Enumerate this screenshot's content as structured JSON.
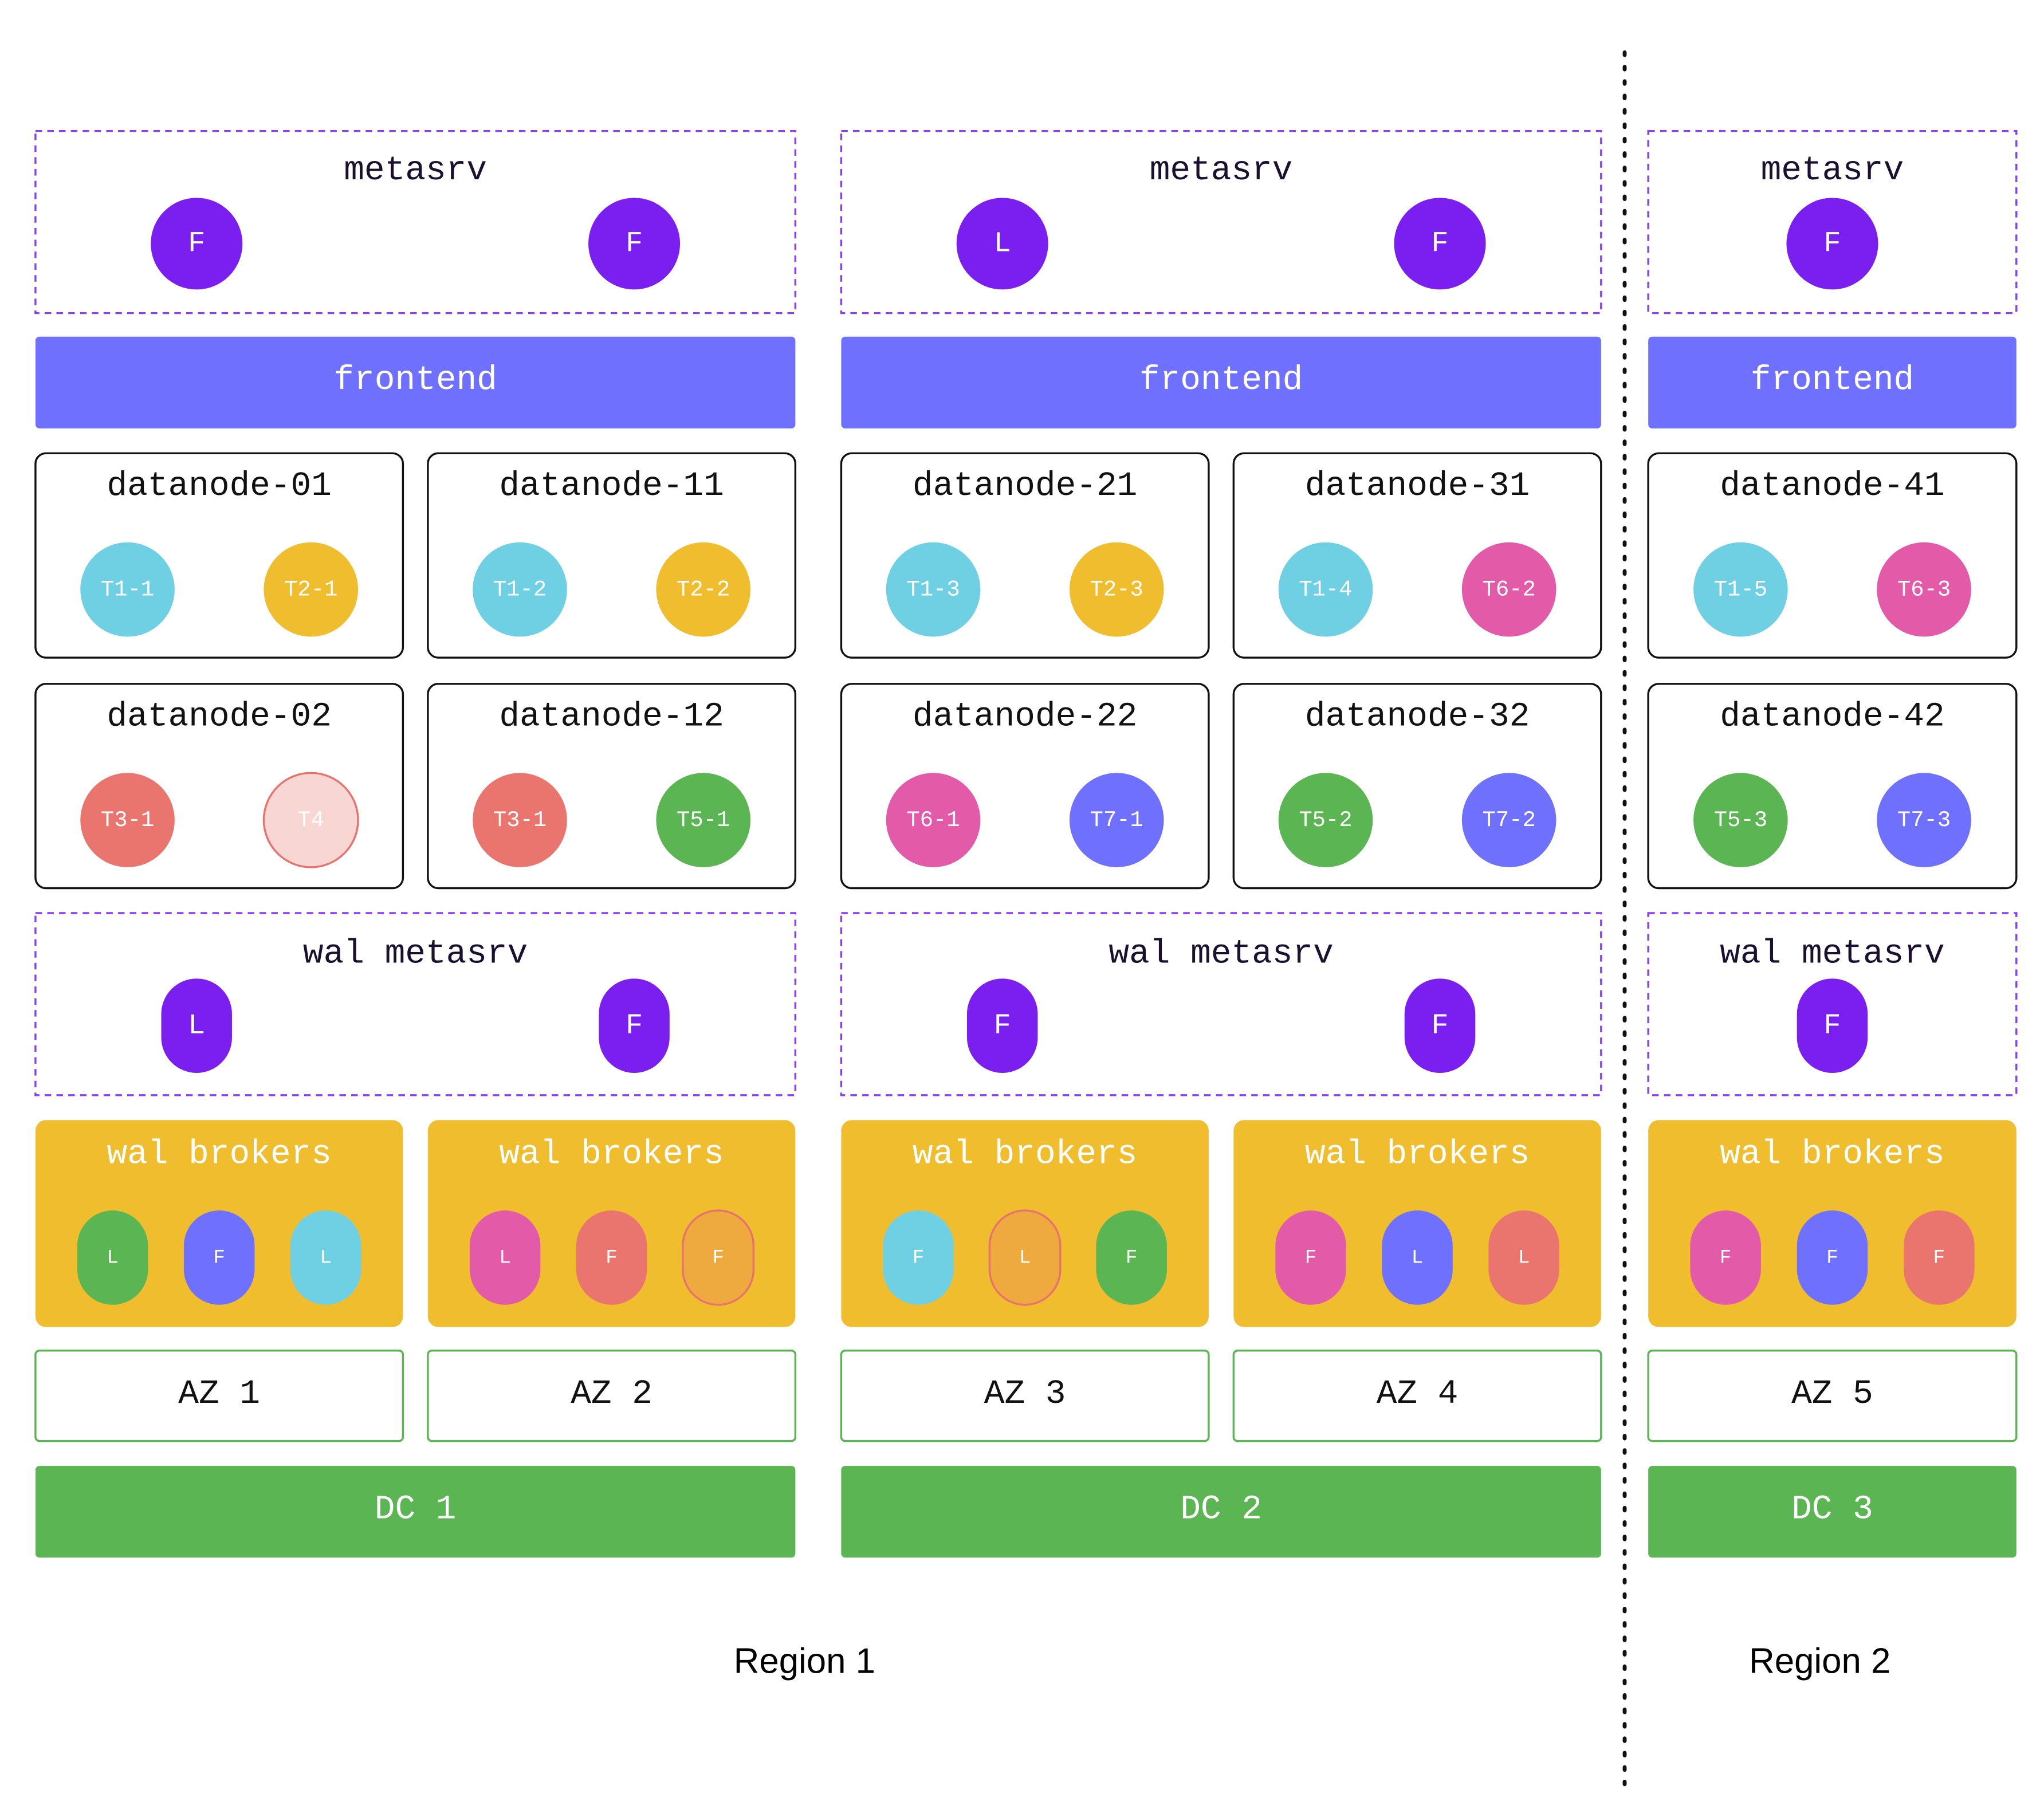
{
  "columns": [
    {
      "metasrv": {
        "title": "metasrv",
        "nodes": [
          "F",
          "F"
        ]
      },
      "frontend": "frontend",
      "datanodes": [
        {
          "name": "datanode-01",
          "regions": [
            {
              "label": "T1-1",
              "color": "#6fcfe3"
            },
            {
              "label": "T2-1",
              "color": "#f0bd2e"
            }
          ]
        },
        {
          "name": "datanode-11",
          "regions": [
            {
              "label": "T1-2",
              "color": "#6fcfe3"
            },
            {
              "label": "T2-2",
              "color": "#f0bd2e"
            }
          ]
        },
        {
          "name": "datanode-02",
          "regions": [
            {
              "label": "T3-1",
              "color": "#ea756e"
            },
            {
              "label": "T4",
              "color": "#f8d6d4",
              "outline": "#e8736c"
            }
          ]
        },
        {
          "name": "datanode-12",
          "regions": [
            {
              "label": "T3-1",
              "color": "#ea756e"
            },
            {
              "label": "T5-1",
              "color": "#5ab552"
            }
          ]
        }
      ],
      "wal_metasrv": {
        "title": "wal metasrv",
        "nodes": [
          "L",
          "F"
        ]
      },
      "wal_brokers": [
        {
          "title": "wal brokers",
          "nodes": [
            {
              "label": "L",
              "color": "#5ab552"
            },
            {
              "label": "F",
              "color": "#7070ff"
            },
            {
              "label": "L",
              "color": "#6fcfe3"
            }
          ]
        },
        {
          "title": "wal brokers",
          "nodes": [
            {
              "label": "L",
              "color": "#e35ba8"
            },
            {
              "label": "F",
              "color": "#ea756e"
            },
            {
              "label": "F",
              "color": "#eeaa3e",
              "outline": "#e8736c"
            }
          ]
        }
      ],
      "azs": [
        "AZ 1",
        "AZ 2"
      ],
      "dc": "DC 1"
    },
    {
      "metasrv": {
        "title": "metasrv",
        "nodes": [
          "L",
          "F"
        ]
      },
      "frontend": "frontend",
      "datanodes": [
        {
          "name": "datanode-21",
          "regions": [
            {
              "label": "T1-3",
              "color": "#6fcfe3"
            },
            {
              "label": "T2-3",
              "color": "#f0bd2e"
            }
          ]
        },
        {
          "name": "datanode-31",
          "regions": [
            {
              "label": "T1-4",
              "color": "#6fcfe3"
            },
            {
              "label": "T6-2",
              "color": "#e35ba8"
            }
          ]
        },
        {
          "name": "datanode-22",
          "regions": [
            {
              "label": "T6-1",
              "color": "#e35ba8"
            },
            {
              "label": "T7-1",
              "color": "#7070ff"
            }
          ]
        },
        {
          "name": "datanode-32",
          "regions": [
            {
              "label": "T5-2",
              "color": "#5ab552"
            },
            {
              "label": "T7-2",
              "color": "#7070ff"
            }
          ]
        }
      ],
      "wal_metasrv": {
        "title": "wal metasrv",
        "nodes": [
          "F",
          "F"
        ]
      },
      "wal_brokers": [
        {
          "title": "wal brokers",
          "nodes": [
            {
              "label": "F",
              "color": "#6fcfe3"
            },
            {
              "label": "L",
              "color": "#eeaa3e",
              "outline": "#e8736c"
            },
            {
              "label": "F",
              "color": "#5ab552"
            }
          ]
        },
        {
          "title": "wal brokers",
          "nodes": [
            {
              "label": "F",
              "color": "#e35ba8"
            },
            {
              "label": "L",
              "color": "#7070ff"
            },
            {
              "label": "L",
              "color": "#ea756e"
            }
          ]
        }
      ],
      "azs": [
        "AZ 3",
        "AZ 4"
      ],
      "dc": "DC 2"
    },
    {
      "metasrv": {
        "title": "metasrv",
        "nodes": [
          "F"
        ]
      },
      "frontend": "frontend",
      "datanodes": [
        {
          "name": "datanode-41",
          "regions": [
            {
              "label": "T1-5",
              "color": "#6fcfe3"
            },
            {
              "label": "T6-3",
              "color": "#e35ba8"
            }
          ]
        },
        {
          "name": "datanode-42",
          "regions": [
            {
              "label": "T5-3",
              "color": "#5ab552"
            },
            {
              "label": "T7-3",
              "color": "#7070ff"
            }
          ]
        }
      ],
      "wal_metasrv": {
        "title": "wal metasrv",
        "nodes": [
          "F"
        ]
      },
      "wal_brokers": [
        {
          "title": "wal brokers",
          "nodes": [
            {
              "label": "F",
              "color": "#e35ba8"
            },
            {
              "label": "F",
              "color": "#7070ff"
            },
            {
              "label": "F",
              "color": "#ea756e"
            }
          ]
        }
      ],
      "azs": [
        "AZ 5"
      ],
      "dc": "DC 3"
    }
  ],
  "regions": [
    "Region 1",
    "Region 2"
  ]
}
